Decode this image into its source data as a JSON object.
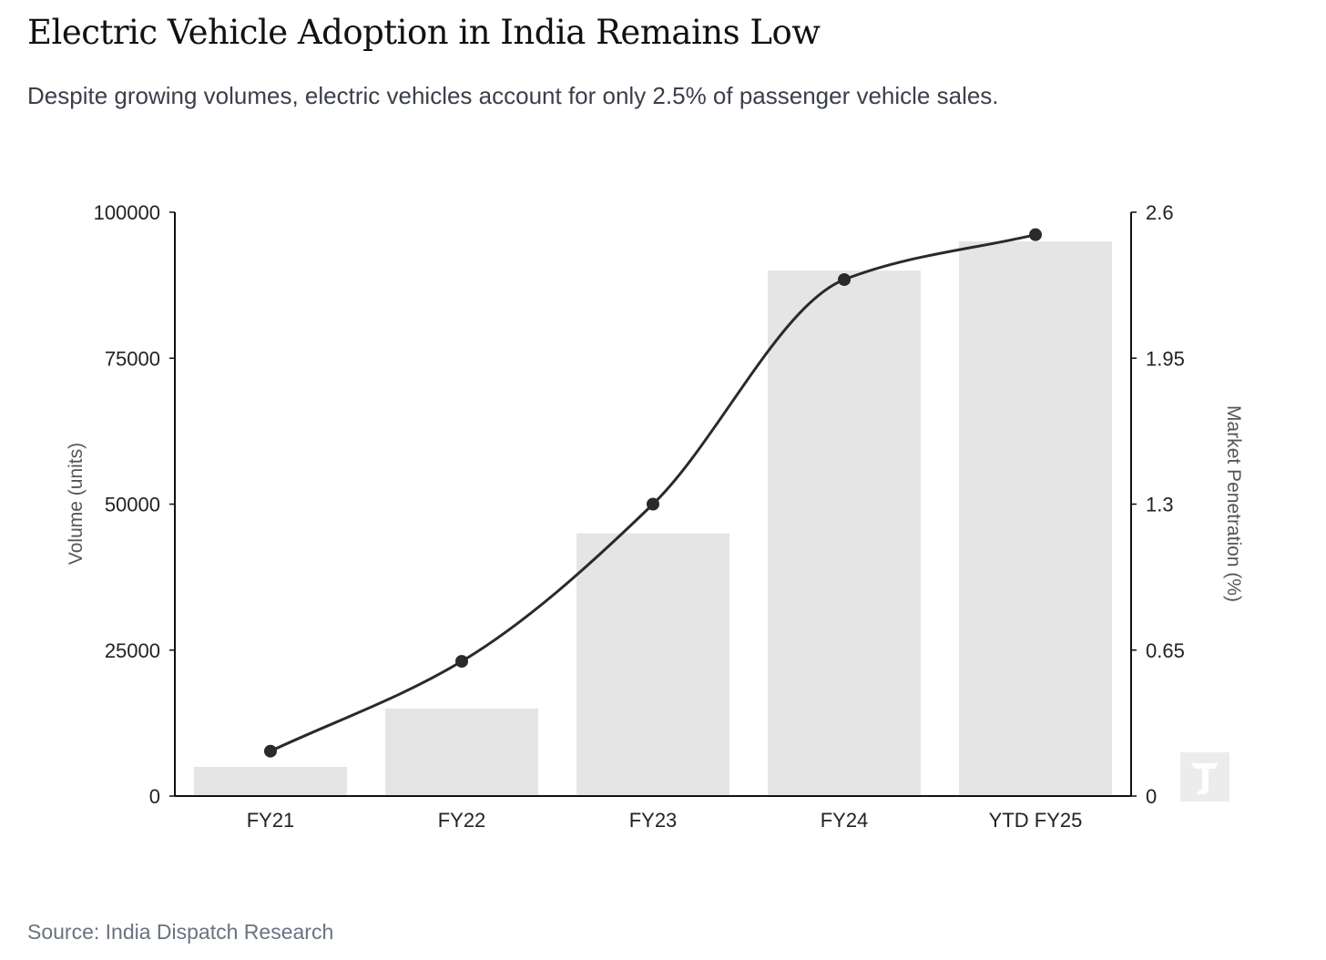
{
  "header": {
    "title": "Electric Vehicle Adoption in India Remains Low",
    "subtitle": "Despite growing volumes, electric vehicles account for only 2.5% of passenger vehicle sales."
  },
  "footer": {
    "source": "Source: India Dispatch Research"
  },
  "colors": {
    "bar": "#e5e5e5",
    "line": "#2a2a2a",
    "axis": "#111111"
  },
  "logo": {
    "icon": "india-dispatch-logo-icon"
  },
  "chart_data": {
    "type": "bar",
    "categories": [
      "FY21",
      "FY22",
      "FY23",
      "FY24",
      "YTD FY25"
    ],
    "series": [
      {
        "name": "Volume",
        "type": "bar",
        "axis": "left",
        "values": [
          5000,
          15000,
          45000,
          90000,
          95000
        ]
      },
      {
        "name": "Market Penetration",
        "type": "line",
        "axis": "right",
        "values": [
          0.2,
          0.6,
          1.3,
          2.3,
          2.5
        ]
      }
    ],
    "ylabel": "Volume (units)",
    "y2label": "Market Penetration (%)",
    "ylim": [
      0,
      100000
    ],
    "y2lim": [
      0,
      2.6
    ],
    "yticks": [
      "0",
      "25000",
      "50000",
      "75000",
      "100000"
    ],
    "y2ticks": [
      "0",
      "0.65",
      "1.3",
      "1.95",
      "2.6"
    ],
    "grid": false,
    "legend": "none"
  }
}
